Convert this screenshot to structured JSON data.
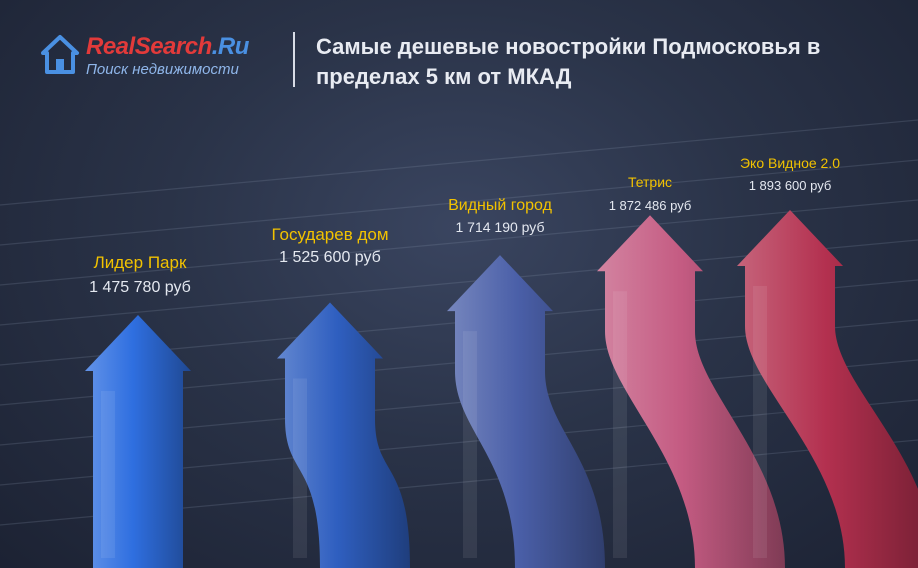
{
  "header": {
    "logo_name_part1": "RealSearch",
    "logo_name_part2": ".Ru",
    "logo_tagline": "Поиск недвижимости",
    "title": "Самые дешевые новостройки Подмосковья в пределах 5 км от МКАД"
  },
  "colors": {
    "brand_red": "#e23a3a",
    "brand_blue": "#4a90e2",
    "label_yellow": "#f2c200",
    "value_white": "#e4e8f0"
  },
  "chart_data": {
    "type": "bar",
    "categories": [
      "Лидер Парк",
      "Государев дом",
      "Видный город",
      "Тетрис",
      "Эко Видное 2.0"
    ],
    "values": [
      1475780,
      1525600,
      1714190,
      1872486,
      1893600
    ],
    "value_labels": [
      "1 475 780 руб",
      "1 525 600 руб",
      "1 714 190 руб",
      "1 872 486 руб",
      "1 893 600 руб"
    ],
    "bar_colors": [
      "#2f6fe0",
      "#2f5fc0",
      "#4a5fa8",
      "#c45b82",
      "#b3304f"
    ],
    "title": "Самые дешевые новостройки Подмосковья в пределах 5 км от МКАД",
    "xlabel": "",
    "ylabel": "",
    "grid": true,
    "legend": "none"
  }
}
